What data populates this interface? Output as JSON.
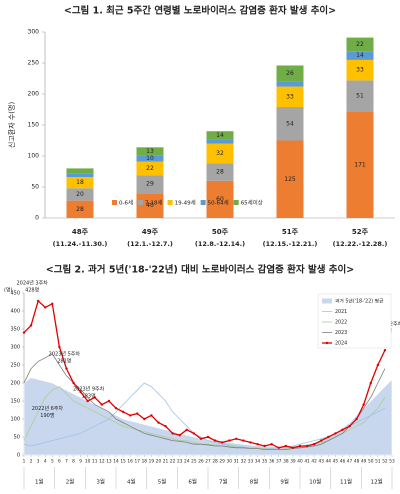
{
  "chart_data": [
    {
      "type": "stacked_bar",
      "title": "<그림 1. 최근 5주간 연령별 노로바이러스 감염증 환자 발생 추이>",
      "y_label": "신고환자 수(명)",
      "categories": [
        "48주",
        "49주",
        "50주",
        "51주",
        "52주"
      ],
      "category_notes": [
        "(11.24.-11.30.)",
        "(12.1.-12.7.)",
        "(12.8.-12.14.)",
        "(12.15.-12.21.)",
        "(12.22.-12.28.)"
      ],
      "series": [
        {
          "name": "0-6세",
          "color": "#ed7d31",
          "values": [
            28,
            40,
            60,
            125,
            171
          ],
          "value_labels": [
            "28",
            "40",
            "60",
            "125",
            "171"
          ]
        },
        {
          "name": "7-18세",
          "color": "#a5a5a5",
          "values": [
            20,
            29,
            28,
            54,
            51
          ],
          "value_labels": [
            "20",
            "29",
            "28",
            "54",
            "51"
          ]
        },
        {
          "name": "19-49세",
          "color": "#ffc000",
          "values": [
            18,
            22,
            32,
            33,
            33
          ],
          "value_labels": [
            "18",
            "22",
            "32",
            "33",
            "33"
          ]
        },
        {
          "name": "50-64세",
          "color": "#5b9bd5",
          "values": [
            6,
            10,
            6,
            8,
            14
          ],
          "value_labels": [
            null,
            "10",
            null,
            null,
            "14"
          ]
        },
        {
          "name": "65세이상",
          "color": "#70ad47",
          "values": [
            8,
            13,
            14,
            26,
            22
          ],
          "value_labels": [
            null,
            "13",
            "14",
            "26",
            "22"
          ]
        }
      ],
      "ylim": [
        0,
        300
      ],
      "yticks": [
        0,
        50,
        100,
        150,
        200,
        250,
        300
      ],
      "legend": "bottom"
    },
    {
      "type": "line",
      "title": "<그림 2. 과거 5년('18-'22년) 대비 노로바이러스 감염증 환자 발생 추이>",
      "y_label": "(명)",
      "x": [
        1,
        2,
        3,
        4,
        5,
        6,
        7,
        8,
        9,
        10,
        11,
        12,
        13,
        14,
        15,
        16,
        17,
        18,
        19,
        20,
        21,
        22,
        23,
        24,
        25,
        26,
        27,
        28,
        29,
        30,
        31,
        32,
        33,
        34,
        35,
        36,
        37,
        38,
        39,
        40,
        41,
        42,
        43,
        44,
        45,
        46,
        47,
        48,
        49,
        50,
        51,
        52,
        53
      ],
      "xlim": [
        1,
        53
      ],
      "xticks": [
        1,
        2,
        3,
        4,
        5,
        6,
        7,
        8,
        9,
        10,
        11,
        12,
        13,
        14,
        15,
        16,
        17,
        18,
        19,
        20,
        21,
        22,
        23,
        24,
        25,
        26,
        27,
        28,
        29,
        30,
        31,
        32,
        33,
        34,
        35,
        36,
        37,
        38,
        39,
        40,
        41,
        42,
        43,
        44,
        45,
        46,
        47,
        48,
        49,
        50,
        51,
        52,
        53
      ],
      "months": [
        "1월",
        "2월",
        "3월",
        "4월",
        "5월",
        "6월",
        "7월",
        "8월",
        "9월",
        "10월",
        "11월",
        "12월"
      ],
      "ylim": [
        0,
        450
      ],
      "yticks": [
        0,
        50,
        100,
        150,
        200,
        250,
        300,
        350,
        400,
        450
      ],
      "legend": "upper right",
      "series": [
        {
          "name": "과거 5년('18-'22) 평균",
          "kind": "area",
          "color": "#c9d7ee",
          "values": [
            200,
            215,
            210,
            205,
            200,
            190,
            180,
            170,
            160,
            150,
            140,
            130,
            120,
            110,
            100,
            95,
            90,
            85,
            80,
            75,
            70,
            65,
            60,
            55,
            50,
            45,
            42,
            40,
            38,
            35,
            32,
            30,
            28,
            26,
            25,
            24,
            22,
            22,
            24,
            26,
            30,
            35,
            40,
            50,
            60,
            75,
            90,
            110,
            130,
            150,
            170,
            190,
            210
          ]
        },
        {
          "name": "2021",
          "kind": "line",
          "color": "#9dc3e6",
          "values": [
            30,
            25,
            30,
            35,
            40,
            45,
            50,
            55,
            60,
            70,
            80,
            90,
            100,
            120,
            140,
            160,
            180,
            200,
            190,
            170,
            150,
            120,
            100,
            80,
            60,
            50,
            40,
            35,
            30,
            28,
            25,
            22,
            20,
            20,
            18,
            18,
            20,
            22,
            25,
            30,
            35,
            40,
            45,
            50,
            60,
            70,
            80,
            90,
            100,
            110,
            120,
            130,
            null
          ]
        },
        {
          "name": "2022",
          "kind": "line",
          "color": "#a9d18e",
          "values": [
            40,
            80,
            120,
            160,
            180,
            190,
            170,
            150,
            140,
            130,
            120,
            110,
            100,
            90,
            80,
            75,
            70,
            65,
            60,
            55,
            50,
            45,
            40,
            40,
            35,
            30,
            30,
            28,
            25,
            25,
            22,
            20,
            20,
            18,
            18,
            15,
            15,
            18,
            20,
            22,
            25,
            30,
            35,
            40,
            50,
            60,
            70,
            80,
            90,
            110,
            130,
            160,
            null
          ]
        },
        {
          "name": "2023",
          "kind": "line",
          "color": "#7f7f7f",
          "values": [
            200,
            240,
            260,
            270,
            281,
            250,
            220,
            200,
            183,
            160,
            140,
            130,
            120,
            100,
            90,
            80,
            70,
            60,
            55,
            50,
            45,
            40,
            38,
            35,
            30,
            30,
            28,
            25,
            25,
            22,
            20,
            20,
            18,
            18,
            15,
            15,
            15,
            15,
            18,
            20,
            22,
            25,
            30,
            40,
            50,
            60,
            80,
            100,
            130,
            160,
            200,
            240,
            null
          ]
        },
        {
          "name": "2024",
          "kind": "line",
          "color": "#e00000",
          "markers": true,
          "values": [
            340,
            360,
            428,
            410,
            420,
            300,
            240,
            200,
            175,
            150,
            160,
            140,
            150,
            130,
            120,
            110,
            115,
            100,
            110,
            90,
            80,
            60,
            55,
            70,
            60,
            45,
            50,
            40,
            35,
            40,
            45,
            40,
            35,
            30,
            25,
            30,
            20,
            25,
            20,
            25,
            25,
            30,
            40,
            50,
            60,
            70,
            80,
            100,
            140,
            200,
            250,
            291,
            null
          ]
        }
      ],
      "annotations": [
        {
          "x": 3,
          "y": 428,
          "lines": [
            "2024년 3주차",
            "428명"
          ],
          "color": "#e00000"
        },
        {
          "x": 5,
          "y": 281,
          "lines": [
            "2023년 5주차",
            "281명"
          ],
          "color": "#c00000"
        },
        {
          "x": 6,
          "y": 190,
          "lines": [
            "2022년 6주차",
            "190명"
          ],
          "color": "#c00000"
        },
        {
          "x": 9,
          "y": 183,
          "lines": [
            "2023년 9주차",
            "183명"
          ],
          "color": "#c00000"
        },
        {
          "x": 52,
          "y": 291,
          "lines": [
            "2024년 52주차",
            "291명"
          ],
          "color": "#2f5597"
        }
      ]
    }
  ]
}
